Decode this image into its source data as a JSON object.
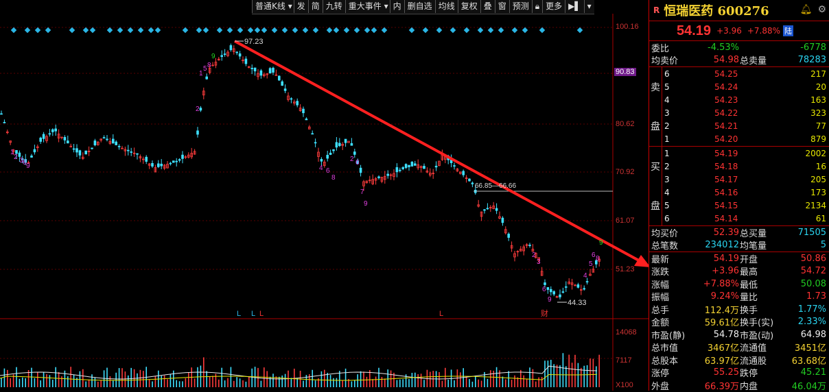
{
  "toolbar": {
    "items": [
      "普通K线",
      "发",
      "简",
      "九转",
      "重大事件",
      "内",
      "删自选",
      "均线",
      "复权",
      "叠",
      "窗",
      "预测",
      "更多"
    ]
  },
  "chart": {
    "price_axis": [
      "100.16",
      "90.83",
      "80.62",
      "70.92",
      "61.07",
      "51.23"
    ],
    "highlight_price": "90.83",
    "volume_axis": [
      "14068",
      "7117",
      "X100"
    ],
    "annotations": {
      "high_label": "97.23",
      "low_label": "44.33",
      "range_label": "66.85—66.66",
      "markers": [
        "L",
        "L",
        "L",
        "L",
        "财"
      ]
    },
    "colors": {
      "up": "#ff3c3c",
      "down": "#3ee0ff",
      "trendline": "#ff2020",
      "td": "#e040e0",
      "td_green": "#22dd22"
    }
  },
  "header": {
    "badge": "R",
    "name": "恒瑞医药",
    "code": "600276",
    "price": "54.19",
    "change": "+3.96",
    "change_pct": "+7.88%",
    "market_badge": "陆"
  },
  "stats_top": {
    "webi_label": "委比",
    "webi_value": "-4.53%",
    "webi_diff": "-6778",
    "avg_sell_label": "均卖价",
    "avg_sell_value": "54.98",
    "total_sell_label": "总卖量",
    "total_sell_value": "78283"
  },
  "sell": {
    "side_label": [
      "卖",
      "盘"
    ],
    "levels": [
      {
        "lvl": "6",
        "px": "54.25",
        "vol": "217"
      },
      {
        "lvl": "5",
        "px": "54.24",
        "vol": "20"
      },
      {
        "lvl": "4",
        "px": "54.23",
        "vol": "163"
      },
      {
        "lvl": "3",
        "px": "54.22",
        "vol": "323"
      },
      {
        "lvl": "2",
        "px": "54.21",
        "vol": "77"
      },
      {
        "lvl": "1",
        "px": "54.20",
        "vol": "879"
      }
    ]
  },
  "buy": {
    "side_label": [
      "买",
      "盘"
    ],
    "levels": [
      {
        "lvl": "1",
        "px": "54.19",
        "vol": "2002"
      },
      {
        "lvl": "2",
        "px": "54.18",
        "vol": "16"
      },
      {
        "lvl": "3",
        "px": "54.17",
        "vol": "205"
      },
      {
        "lvl": "4",
        "px": "54.16",
        "vol": "173"
      },
      {
        "lvl": "5",
        "px": "54.15",
        "vol": "2134"
      },
      {
        "lvl": "6",
        "px": "54.14",
        "vol": "61"
      }
    ]
  },
  "stats_mid": {
    "avg_buy_label": "均买价",
    "avg_buy_value": "52.39",
    "total_buy_label": "总买量",
    "total_buy_value": "71505",
    "trades_label": "总笔数",
    "trades_value": "234012",
    "avg_trade_label": "均笔量",
    "avg_trade_value": "5"
  },
  "quote": [
    {
      "l1": "最新",
      "v1": "54.19",
      "l2": "开盘",
      "v2": "50.86"
    },
    {
      "l1": "涨跌",
      "v1": "+3.96",
      "l2": "最高",
      "v2": "54.72"
    },
    {
      "l1": "涨幅",
      "v1": "+7.88%",
      "l2": "最低",
      "v2": "50.08"
    },
    {
      "l1": "振幅",
      "v1": "9.24%",
      "l2": "量比",
      "v2": "1.73"
    },
    {
      "l1": "总手",
      "v1": "112.4万",
      "l2": "换手",
      "v2": "1.77%"
    },
    {
      "l1": "金额",
      "v1": "59.61亿",
      "l2": "换手(实)",
      "v2": "2.33%"
    },
    {
      "l1": "市盈(静)",
      "v1": "54.78",
      "l2": "市盈(动)",
      "v2": "64.98"
    },
    {
      "l1": "总市值",
      "v1": "3467亿",
      "l2": "流通值",
      "v2": "3451亿"
    },
    {
      "l1": "总股本",
      "v1": "63.97亿",
      "l2": "流通股",
      "v2": "63.68亿"
    },
    {
      "l1": "涨停",
      "v1": "55.25",
      "l2": "跌停",
      "v2": "45.21"
    },
    {
      "l1": "外盘",
      "v1": "66.39万",
      "l2": "内盘",
      "v2": "46.04万"
    }
  ]
}
